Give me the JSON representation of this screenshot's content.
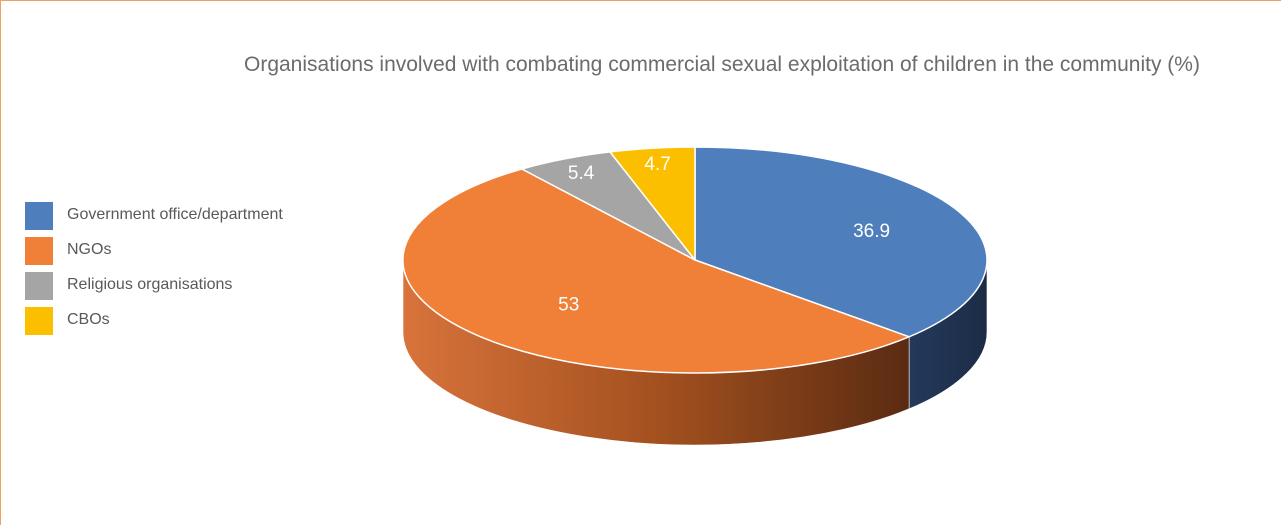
{
  "chart_data": {
    "type": "pie",
    "title": "Organisations involved with combating commercial sexual exploitation of children in the community (%)",
    "legend_position": "left",
    "slices": [
      {
        "label": "Government office/department",
        "value": 36.9,
        "display": "36.9",
        "color": "#4e7fbc"
      },
      {
        "label": "NGOs",
        "value": 53,
        "display": "53",
        "color": "#f07f38"
      },
      {
        "label": "Religious organisations",
        "value": 5.4,
        "display": "5.4",
        "color": "#a5a5a5"
      },
      {
        "label": "CBOs",
        "value": 4.7,
        "display": "4.7",
        "color": "#fbbf00"
      }
    ]
  }
}
